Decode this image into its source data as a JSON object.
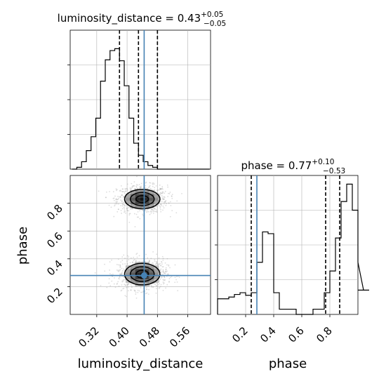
{
  "chart_data": {
    "type": "corner",
    "params": [
      "luminosity_distance",
      "phase"
    ],
    "truth": {
      "luminosity_distance": 0.445,
      "phase": 0.28
    },
    "panels": [
      {
        "id": "hist-luminosity-distance",
        "type": "histogram",
        "title": {
          "main": "luminosity_distance = 0.43",
          "sup": "+0.05",
          "sub": "−0.05"
        },
        "xlim": [
          0.25,
          0.62
        ],
        "quantile_lines": [
          0.38,
          0.43,
          0.48
        ],
        "truth_line": 0.445,
        "bins": {
          "start": 0.255,
          "width": 0.0125,
          "counts": [
            0,
            2,
            8,
            20,
            35,
            55,
            95,
            118,
            128,
            130,
            117,
            90,
            55,
            28,
            15,
            8,
            4,
            2,
            0,
            0,
            0,
            0,
            0,
            0,
            0,
            0,
            0,
            0,
            0
          ]
        },
        "ylim": [
          0,
          150
        ],
        "grid": true
      },
      {
        "id": "hist-phase",
        "type": "histogram",
        "title": {
          "main": "phase = 0.77",
          "sup": "+0.10",
          "sub": "−0.53"
        },
        "xlim": [
          0.0,
          1.0
        ],
        "quantile_lines": [
          0.24,
          0.77,
          0.87
        ],
        "truth_line": 0.28,
        "bins": {
          "start": 0.0,
          "width": 0.04,
          "counts": [
            18,
            18,
            20,
            23,
            25,
            22,
            25,
            60,
            95,
            93,
            25,
            6,
            6,
            6,
            0,
            0,
            0,
            6,
            6,
            25,
            50,
            88,
            130,
            150,
            120,
            60,
            28,
            28
          ]
        },
        "ylim": [
          0,
          160
        ],
        "grid": true
      },
      {
        "id": "density-2d",
        "type": "contour",
        "x": "luminosity_distance",
        "y": "phase",
        "xlim": [
          0.25,
          0.62
        ],
        "ylim": [
          0.0,
          1.0
        ],
        "xlabel": "luminosity_distance",
        "ylabel": "phase",
        "xticks": [
          "0.32",
          "0.40",
          "0.48",
          "0.56"
        ],
        "yticks": [
          "0.2",
          "0.4",
          "0.6",
          "0.8"
        ],
        "modes": [
          {
            "cx": 0.44,
            "cy": 0.83,
            "sx": 0.03,
            "sy": 0.045
          },
          {
            "cx": 0.44,
            "cy": 0.29,
            "sx": 0.03,
            "sy": 0.05
          }
        ],
        "grid": true
      }
    ],
    "phase_xlabel": "phase",
    "phase_xticks": [
      "0.2",
      "0.4",
      "0.6",
      "0.8"
    ],
    "colors": {
      "hist": "#000000",
      "truth": "#4682b4",
      "grid": "#b0b0b0",
      "scatter": "#9e9e9e"
    }
  }
}
